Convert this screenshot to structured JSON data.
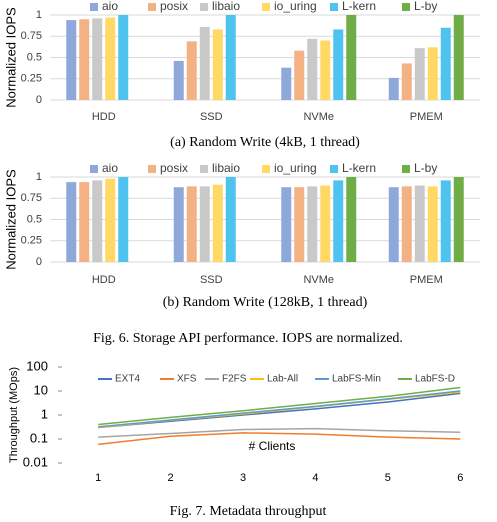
{
  "chart_data": [
    {
      "type": "bar",
      "caption": "(a) Random Write (4kB, 1 thread)",
      "y_label": "Normalized IOPS",
      "categories": [
        "HDD",
        "SSD",
        "NVMe",
        "PMEM"
      ],
      "series": [
        {
          "name": "aio",
          "color": "#8fa8dc",
          "values": [
            0.94,
            0.46,
            0.38,
            0.26
          ]
        },
        {
          "name": "posix",
          "color": "#f4b183",
          "values": [
            0.95,
            0.69,
            0.58,
            0.43
          ]
        },
        {
          "name": "libaio",
          "color": "#c9c9c9",
          "values": [
            0.96,
            0.86,
            0.72,
            0.61
          ]
        },
        {
          "name": "io_uring",
          "color": "#ffd966",
          "values": [
            0.97,
            0.83,
            0.7,
            0.62
          ]
        },
        {
          "name": "L-kern",
          "color": "#4fc3f0",
          "values": [
            1,
            1,
            0.83,
            0.85
          ]
        },
        {
          "name": "L-by",
          "color": "#70ad47",
          "values": [
            null,
            null,
            1,
            1
          ]
        }
      ],
      "ylim": [
        0,
        1
      ],
      "yticks": [
        0,
        0.25,
        0.5,
        0.75,
        1
      ]
    },
    {
      "type": "bar",
      "caption": "(b) Random Write (128kB, 1 thread)",
      "y_label": "Normalized IOPS",
      "categories": [
        "HDD",
        "SSD",
        "NVMe",
        "PMEM"
      ],
      "series": [
        {
          "name": "aio",
          "color": "#8fa8dc",
          "values": [
            0.94,
            0.88,
            0.88,
            0.88
          ]
        },
        {
          "name": "posix",
          "color": "#f4b183",
          "values": [
            0.94,
            0.89,
            0.88,
            0.89
          ]
        },
        {
          "name": "libaio",
          "color": "#c9c9c9",
          "values": [
            0.96,
            0.89,
            0.89,
            0.9
          ]
        },
        {
          "name": "io_uring",
          "color": "#ffd966",
          "values": [
            0.98,
            0.91,
            0.9,
            0.89
          ]
        },
        {
          "name": "L-kern",
          "color": "#4fc3f0",
          "values": [
            1,
            1,
            0.96,
            0.96
          ]
        },
        {
          "name": "L-by",
          "color": "#70ad47",
          "values": [
            null,
            null,
            1,
            1
          ]
        }
      ],
      "ylim": [
        0,
        1
      ],
      "yticks": [
        0,
        0.25,
        0.5,
        0.75,
        1
      ]
    },
    {
      "type": "line",
      "y_label": "Throughput (MOps)",
      "x_label": "# Clients",
      "log_y": true,
      "x": [
        1,
        2,
        3,
        4,
        5,
        6
      ],
      "series": [
        {
          "name": "EXT4",
          "color": "#4472c4",
          "values": [
            0.3,
            0.55,
            1.0,
            1.8,
            3.5,
            8
          ]
        },
        {
          "name": "XFS",
          "color": "#ed7d31",
          "values": [
            0.06,
            0.13,
            0.18,
            0.16,
            0.12,
            0.1
          ]
        },
        {
          "name": "F2FS",
          "color": "#a5a5a5",
          "values": [
            0.12,
            0.17,
            0.25,
            0.27,
            0.22,
            0.19
          ]
        },
        {
          "name": "Lab-All",
          "color": "#ffc000",
          "values": [
            0.3,
            0.6,
            1.1,
            2.2,
            4.5,
            9
          ]
        },
        {
          "name": "LabFS-Min",
          "color": "#5b9bd5",
          "values": [
            0.32,
            0.62,
            1.2,
            2.3,
            4.7,
            10
          ]
        },
        {
          "name": "LabFS-D",
          "color": "#70ad47",
          "values": [
            0.4,
            0.8,
            1.5,
            3,
            6,
            14
          ]
        }
      ],
      "xlim": [
        0.5,
        6.3
      ],
      "xticks": [
        1,
        2,
        3,
        4,
        5,
        6
      ],
      "ylim": [
        0.01,
        100
      ],
      "yticks": [
        0.01,
        0.1,
        1,
        10,
        100
      ]
    }
  ],
  "figure_captions": [
    "Fig. 6.  Storage API performance. IOPS are normalized.",
    "Fig. 7.  Metadata throughput"
  ]
}
